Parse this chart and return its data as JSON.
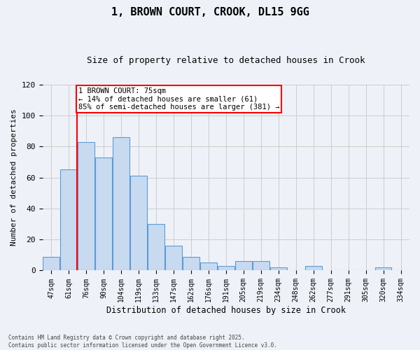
{
  "title_line1": "1, BROWN COURT, CROOK, DL15 9GG",
  "title_line2": "Size of property relative to detached houses in Crook",
  "xlabel": "Distribution of detached houses by size in Crook",
  "ylabel": "Number of detached properties",
  "categories": [
    "47sqm",
    "61sqm",
    "76sqm",
    "90sqm",
    "104sqm",
    "119sqm",
    "133sqm",
    "147sqm",
    "162sqm",
    "176sqm",
    "191sqm",
    "205sqm",
    "219sqm",
    "234sqm",
    "248sqm",
    "262sqm",
    "277sqm",
    "291sqm",
    "305sqm",
    "320sqm",
    "334sqm"
  ],
  "values": [
    9,
    65,
    83,
    73,
    86,
    61,
    30,
    16,
    9,
    5,
    3,
    6,
    6,
    2,
    0,
    3,
    0,
    0,
    0,
    2,
    0
  ],
  "bar_color": "#c8daf0",
  "bar_edge_color": "#5b9bd5",
  "vline_color": "red",
  "annotation_text": "1 BROWN COURT: 75sqm\n← 14% of detached houses are smaller (61)\n85% of semi-detached houses are larger (381) →",
  "annotation_box_color": "white",
  "annotation_box_edge_color": "red",
  "ylim": [
    0,
    120
  ],
  "yticks": [
    0,
    20,
    40,
    60,
    80,
    100,
    120
  ],
  "grid_color": "#cccccc",
  "background_color": "#eef2f8",
  "footnote": "Contains HM Land Registry data © Crown copyright and database right 2025.\nContains public sector information licensed under the Open Government Licence v3.0."
}
